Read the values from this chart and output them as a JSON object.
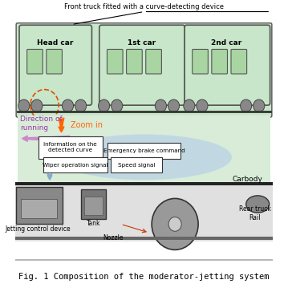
{
  "title": "Fig. 1 Composition of the moderator-jetting system",
  "title_fontsize": 7.5,
  "bg_color": "#ffffff",
  "train_body_color": "#c8e6c9",
  "train_outline_color": "#555555",
  "carbody_bg": "#d8ecd8",
  "signal_box_color": "#ffffff",
  "signal_box_edge": "#333333",
  "ellipse_color": "#b0c8e8",
  "car_labels": [
    "Head car",
    "1st car",
    "2nd car"
  ],
  "top_annotation": "Front truck fitted with a curve-detecting device",
  "zoom_label": "Zoom in",
  "direction_label": "Direction of\nrunning",
  "signal_boxes": [
    "Information on the\ndetected curve",
    "Emergency brake command",
    "Wiper operation signal",
    "Speed signal"
  ],
  "carbody_label": "Carbody",
  "arrow_color_zoom": "#ff6600",
  "arrow_color_dir": "#cc88cc",
  "arrow_color_signal": "#88aacc"
}
